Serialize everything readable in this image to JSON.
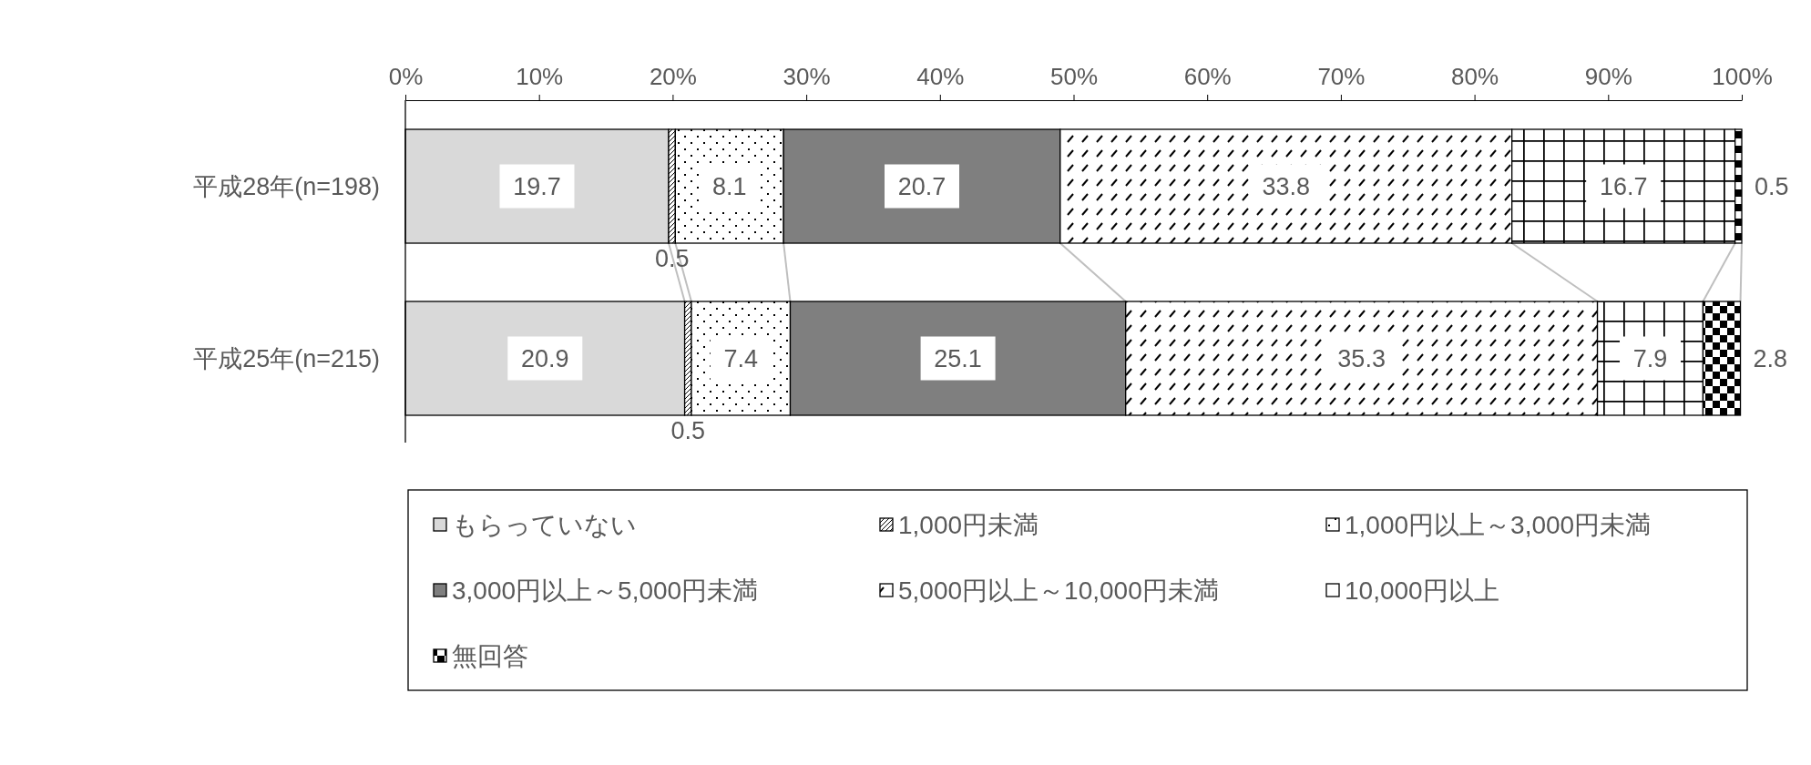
{
  "chart_data": {
    "type": "bar",
    "orientation": "horizontal",
    "stacked": true,
    "categories": [
      "平成28年(n=198)",
      "平成25年(n=215)"
    ],
    "series": [
      {
        "name": "もらっていない",
        "color": "#d9d9d9",
        "values": [
          19.7,
          20.9
        ]
      },
      {
        "name": "1,000円未満",
        "color": "#000000",
        "values": [
          0.5,
          0.5
        ]
      },
      {
        "name": "1,000円以上～3,000円未満",
        "color": "#000000",
        "values": [
          8.1,
          7.4
        ]
      },
      {
        "name": "3,000円以上～5,000円未満",
        "color": "#7f7f7f",
        "values": [
          20.7,
          25.1
        ]
      },
      {
        "name": "5,000円以上～10,000円未満",
        "color": "#000000",
        "values": [
          33.8,
          35.3
        ]
      },
      {
        "name": "10,000円以上",
        "color": "#000000",
        "values": [
          16.7,
          7.9
        ]
      },
      {
        "name": "無回答",
        "color": "#000000",
        "values": [
          0.5,
          2.8
        ]
      }
    ],
    "xlim": [
      0,
      100
    ],
    "xticks": [
      {
        "value": 0,
        "label": "0%"
      },
      {
        "value": 10,
        "label": "10%"
      },
      {
        "value": 20,
        "label": "20%"
      },
      {
        "value": 30,
        "label": "30%"
      },
      {
        "value": 40,
        "label": "40%"
      },
      {
        "value": 50,
        "label": "50%"
      },
      {
        "value": 60,
        "label": "60%"
      },
      {
        "value": 70,
        "label": "70%"
      },
      {
        "value": 80,
        "label": "80%"
      },
      {
        "value": 90,
        "label": "90%"
      },
      {
        "value": 100,
        "label": "100%"
      }
    ],
    "data_labels": true,
    "legend": "bottom",
    "grid": false
  }
}
